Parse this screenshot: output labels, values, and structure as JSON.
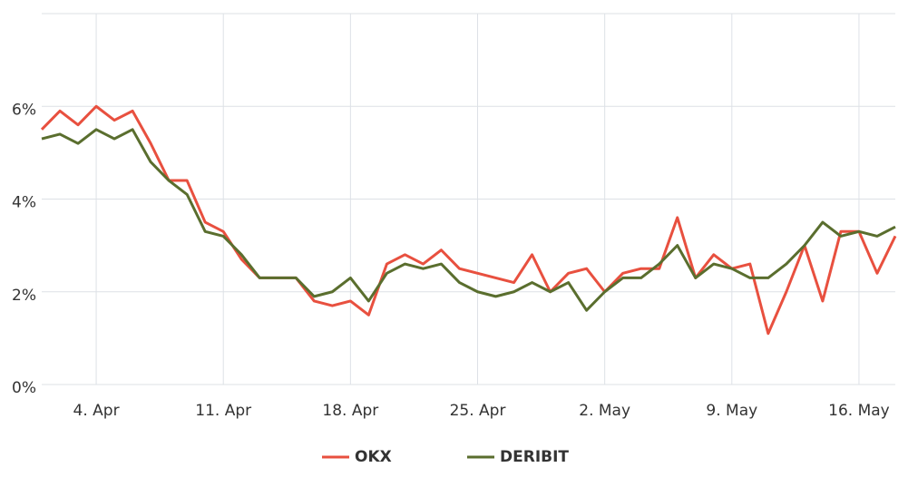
{
  "chart_data": {
    "type": "line",
    "categories": [
      "1. Apr",
      "2. Apr",
      "3. Apr",
      "4. Apr",
      "5. Apr",
      "6. Apr",
      "7. Apr",
      "8. Apr",
      "9. Apr",
      "10. Apr",
      "11. Apr",
      "12. Apr",
      "13. Apr",
      "14. Apr",
      "15. Apr",
      "16. Apr",
      "17. Apr",
      "18. Apr",
      "19. Apr",
      "20. Apr",
      "21. Apr",
      "22. Apr",
      "23. Apr",
      "24. Apr",
      "25. Apr",
      "26. Apr",
      "27. Apr",
      "28. Apr",
      "29. Apr",
      "30. Apr",
      "1. May",
      "2. May",
      "3. May",
      "4. May",
      "5. May",
      "6. May",
      "7. May",
      "8. May",
      "9. May",
      "10. May",
      "11. May",
      "12. May",
      "13. May",
      "14. May",
      "15. May",
      "16. May",
      "17. May",
      "18. May"
    ],
    "series": [
      {
        "name": "OKX",
        "color": "#e8503f",
        "values": [
          5.5,
          5.9,
          5.6,
          6.0,
          5.7,
          5.9,
          5.2,
          4.4,
          4.4,
          3.5,
          3.3,
          2.7,
          2.3,
          2.3,
          2.3,
          1.8,
          1.7,
          1.8,
          1.5,
          2.6,
          2.8,
          2.6,
          2.9,
          2.5,
          2.4,
          2.3,
          2.2,
          2.8,
          2.0,
          2.4,
          2.5,
          2.0,
          2.4,
          2.5,
          2.5,
          3.6,
          2.3,
          2.8,
          2.5,
          2.6,
          1.1,
          2.0,
          3.0,
          1.8,
          3.3,
          3.3,
          2.4,
          3.2
        ]
      },
      {
        "name": "DERIBIT",
        "color": "#5a6e2e",
        "values": [
          5.3,
          5.4,
          5.2,
          5.5,
          5.3,
          5.5,
          4.8,
          4.4,
          4.1,
          3.3,
          3.2,
          2.8,
          2.3,
          2.3,
          2.3,
          1.9,
          2.0,
          2.3,
          1.8,
          2.4,
          2.6,
          2.5,
          2.6,
          2.2,
          2.0,
          1.9,
          2.0,
          2.2,
          2.0,
          2.2,
          1.6,
          2.0,
          2.3,
          2.3,
          2.6,
          3.0,
          2.3,
          2.6,
          2.5,
          2.3,
          2.3,
          2.6,
          3.0,
          3.5,
          3.2,
          3.3,
          3.2,
          3.4
        ]
      }
    ],
    "xticks": [
      "4. Apr",
      "11. Apr",
      "18. Apr",
      "25. Apr",
      "2. May",
      "9. May",
      "16. May"
    ],
    "ylim": [
      0,
      8
    ],
    "yticks": [
      {
        "value": 0,
        "label": "0%"
      },
      {
        "value": 2,
        "label": "2%"
      },
      {
        "value": 4,
        "label": "4%"
      },
      {
        "value": 6,
        "label": "6%"
      }
    ],
    "grid": true,
    "legend": "bottom"
  }
}
